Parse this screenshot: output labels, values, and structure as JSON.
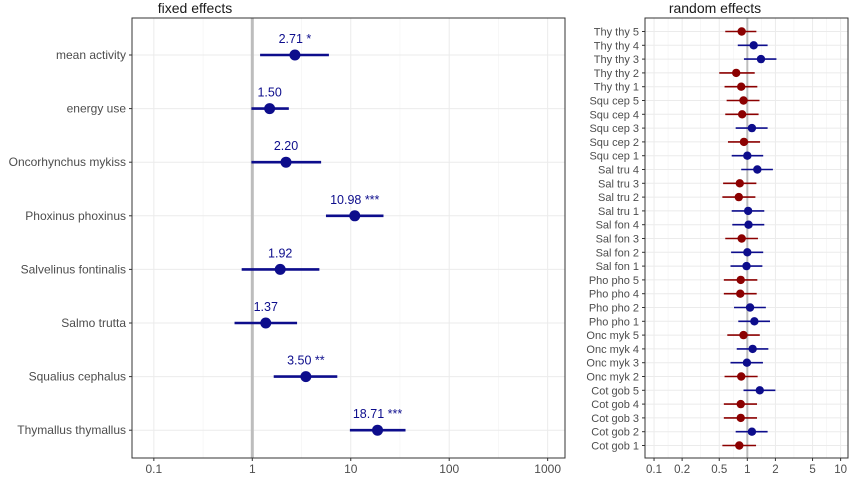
{
  "colors": {
    "navy": "#0d0d8c",
    "darkred": "#8b0000",
    "panel_bg": "#ffffff",
    "grid": "#ebebeb",
    "ref_line": "#bdbdbd",
    "border": "#333333",
    "text": "#4d4d4d",
    "title": "#1a1a1a"
  },
  "chart_data": [
    {
      "type": "forest",
      "title": "fixed effects",
      "x_scale": "log10",
      "xlim": [
        0.06,
        1500
      ],
      "x_ticks": [
        0.1,
        1,
        10,
        100,
        1000
      ],
      "x_tick_labels": [
        "0.1",
        "1",
        "10",
        "100",
        "1000"
      ],
      "reference_line": 1,
      "grid": true,
      "rows": [
        {
          "label": "mean activity",
          "estimate": 2.71,
          "lower": 1.2,
          "upper": 6.0,
          "annotation": "2.71 *"
        },
        {
          "label": "energy use",
          "estimate": 1.5,
          "lower": 0.98,
          "upper": 2.35,
          "annotation": "1.50"
        },
        {
          "label": "Oncorhynchus mykiss",
          "estimate": 2.2,
          "lower": 0.98,
          "upper": 5.0,
          "annotation": "2.20"
        },
        {
          "label": "Phoxinus phoxinus",
          "estimate": 10.98,
          "lower": 5.6,
          "upper": 21.5,
          "annotation": "10.98 ***"
        },
        {
          "label": "Salvelinus fontinalis",
          "estimate": 1.92,
          "lower": 0.78,
          "upper": 4.8,
          "annotation": "1.92"
        },
        {
          "label": "Salmo trutta",
          "estimate": 1.37,
          "lower": 0.66,
          "upper": 2.85,
          "annotation": "1.37"
        },
        {
          "label": "Squalius cephalus",
          "estimate": 3.5,
          "lower": 1.65,
          "upper": 7.3,
          "annotation": "3.50 **"
        },
        {
          "label": "Thymallus thymallus",
          "estimate": 18.71,
          "lower": 9.8,
          "upper": 36.0,
          "annotation": "18.71 ***"
        }
      ]
    },
    {
      "type": "forest",
      "title": "random effects",
      "x_scale": "log10",
      "xlim": [
        0.08,
        12
      ],
      "x_ticks": [
        0.1,
        0.2,
        0.5,
        1,
        2,
        5,
        10
      ],
      "x_tick_labels": [
        "0.1",
        "0.2",
        "0.5",
        "1",
        "2",
        "5",
        "10"
      ],
      "reference_line": 1,
      "grid": true,
      "rows": [
        {
          "label": "Thy thy 5",
          "estimate": 0.87,
          "lower": 0.58,
          "upper": 1.25,
          "color": "darkred"
        },
        {
          "label": "Thy thy 4",
          "estimate": 1.17,
          "lower": 0.79,
          "upper": 1.65,
          "color": "navy"
        },
        {
          "label": "Thy thy 3",
          "estimate": 1.4,
          "lower": 0.92,
          "upper": 2.05,
          "color": "navy"
        },
        {
          "label": "Thy thy 2",
          "estimate": 0.76,
          "lower": 0.5,
          "upper": 1.2,
          "color": "darkred"
        },
        {
          "label": "Thy thy 1",
          "estimate": 0.86,
          "lower": 0.57,
          "upper": 1.28,
          "color": "darkred"
        },
        {
          "label": "Squ cep 5",
          "estimate": 0.91,
          "lower": 0.6,
          "upper": 1.35,
          "color": "darkred"
        },
        {
          "label": "Squ cep 4",
          "estimate": 0.88,
          "lower": 0.58,
          "upper": 1.32,
          "color": "darkred"
        },
        {
          "label": "Squ cep 3",
          "estimate": 1.12,
          "lower": 0.75,
          "upper": 1.65,
          "color": "navy"
        },
        {
          "label": "Squ cep 2",
          "estimate": 0.92,
          "lower": 0.62,
          "upper": 1.37,
          "color": "darkred"
        },
        {
          "label": "Squ cep 1",
          "estimate": 1.0,
          "lower": 0.68,
          "upper": 1.48,
          "color": "navy"
        },
        {
          "label": "Sal tru 4",
          "estimate": 1.28,
          "lower": 0.86,
          "upper": 1.88,
          "color": "navy"
        },
        {
          "label": "Sal tru 3",
          "estimate": 0.83,
          "lower": 0.55,
          "upper": 1.25,
          "color": "darkred"
        },
        {
          "label": "Sal tru 2",
          "estimate": 0.81,
          "lower": 0.54,
          "upper": 1.22,
          "color": "darkred"
        },
        {
          "label": "Sal tru 1",
          "estimate": 1.02,
          "lower": 0.68,
          "upper": 1.52,
          "color": "navy"
        },
        {
          "label": "Sal fon 4",
          "estimate": 1.03,
          "lower": 0.69,
          "upper": 1.52,
          "color": "navy"
        },
        {
          "label": "Sal fon 3",
          "estimate": 0.87,
          "lower": 0.58,
          "upper": 1.3,
          "color": "darkred"
        },
        {
          "label": "Sal fon 2",
          "estimate": 1.0,
          "lower": 0.67,
          "upper": 1.48,
          "color": "navy"
        },
        {
          "label": "Sal fon 1",
          "estimate": 0.98,
          "lower": 0.66,
          "upper": 1.45,
          "color": "navy"
        },
        {
          "label": "Pho pho 5",
          "estimate": 0.85,
          "lower": 0.56,
          "upper": 1.28,
          "color": "darkred"
        },
        {
          "label": "Pho pho 4",
          "estimate": 0.84,
          "lower": 0.56,
          "upper": 1.26,
          "color": "darkred"
        },
        {
          "label": "Pho pho 2",
          "estimate": 1.07,
          "lower": 0.72,
          "upper": 1.58,
          "color": "navy"
        },
        {
          "label": "Pho pho 1",
          "estimate": 1.19,
          "lower": 0.8,
          "upper": 1.75,
          "color": "navy"
        },
        {
          "label": "Onc myk 5",
          "estimate": 0.91,
          "lower": 0.61,
          "upper": 1.36,
          "color": "darkred"
        },
        {
          "label": "Onc myk 4",
          "estimate": 1.14,
          "lower": 0.77,
          "upper": 1.68,
          "color": "navy"
        },
        {
          "label": "Onc myk 3",
          "estimate": 0.99,
          "lower": 0.66,
          "upper": 1.47,
          "color": "navy"
        },
        {
          "label": "Onc myk 2",
          "estimate": 0.86,
          "lower": 0.57,
          "upper": 1.29,
          "color": "darkred"
        },
        {
          "label": "Cot gob 5",
          "estimate": 1.36,
          "lower": 0.91,
          "upper": 2.0,
          "color": "navy"
        },
        {
          "label": "Cot gob 4",
          "estimate": 0.85,
          "lower": 0.56,
          "upper": 1.27,
          "color": "darkred"
        },
        {
          "label": "Cot gob 3",
          "estimate": 0.85,
          "lower": 0.56,
          "upper": 1.27,
          "color": "darkred"
        },
        {
          "label": "Cot gob 2",
          "estimate": 1.12,
          "lower": 0.75,
          "upper": 1.65,
          "color": "navy"
        },
        {
          "label": "Cot gob 1",
          "estimate": 0.82,
          "lower": 0.54,
          "upper": 1.24,
          "color": "darkred"
        }
      ]
    }
  ]
}
